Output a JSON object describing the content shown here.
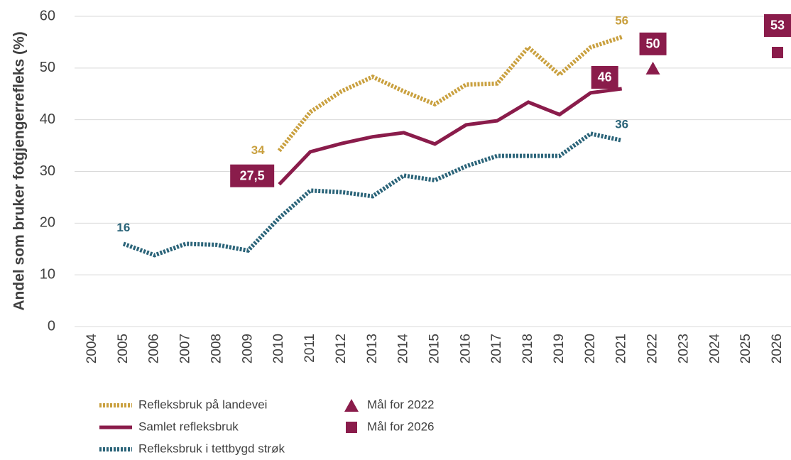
{
  "chart_data": {
    "type": "line",
    "y_label": "Andel som bruker fotgjengerrefleks (%)",
    "categories": [
      "2004",
      "2005",
      "2006",
      "2007",
      "2008",
      "2009",
      "2010",
      "2011",
      "2012",
      "2013",
      "2014",
      "2015",
      "2016",
      "2017",
      "2018",
      "2019",
      "2020",
      "2021",
      "2022",
      "2023",
      "2024",
      "2025",
      "2026"
    ],
    "ylim": [
      0,
      60
    ],
    "yticks": [
      0,
      10,
      20,
      30,
      40,
      50,
      60
    ],
    "grid": true,
    "series": [
      {
        "name": "Refleksbruk på landevei",
        "color": "#c9a03f",
        "style": "dotted",
        "boxed_labels": false,
        "values": [
          null,
          null,
          null,
          null,
          null,
          null,
          34,
          41.5,
          45.5,
          48.3,
          45.5,
          43,
          46.8,
          47,
          54,
          48.7,
          54,
          56,
          null,
          null,
          null,
          null,
          null
        ],
        "value_labels": [
          null,
          null,
          null,
          null,
          null,
          null,
          "34",
          null,
          null,
          null,
          null,
          null,
          null,
          null,
          null,
          null,
          null,
          "56",
          null,
          null,
          null,
          null,
          null
        ]
      },
      {
        "name": "Samlet refleksbruk",
        "color": "#8a1c4b",
        "style": "solid",
        "boxed_labels": true,
        "values": [
          null,
          null,
          null,
          null,
          null,
          null,
          27.5,
          33.8,
          35.4,
          36.7,
          37.5,
          35.3,
          39,
          39.8,
          43.4,
          41,
          45.2,
          46,
          null,
          null,
          null,
          null,
          null
        ],
        "value_labels": [
          null,
          null,
          null,
          null,
          null,
          null,
          "27,5",
          null,
          null,
          null,
          null,
          null,
          null,
          null,
          null,
          null,
          null,
          "46",
          null,
          null,
          null,
          null,
          null
        ]
      },
      {
        "name": "Refleksbruk i tettbygd strøk",
        "color": "#2b6479",
        "style": "dotted",
        "boxed_labels": false,
        "values": [
          null,
          16,
          13.8,
          16,
          15.8,
          14.7,
          21,
          26.3,
          26,
          25.2,
          29.2,
          28.3,
          31,
          33,
          33,
          33,
          37.3,
          36,
          null,
          null,
          null,
          null,
          null
        ],
        "value_labels": [
          null,
          "16",
          null,
          null,
          null,
          null,
          null,
          null,
          null,
          null,
          null,
          null,
          null,
          null,
          null,
          null,
          null,
          "36",
          null,
          null,
          null,
          null,
          null
        ]
      },
      {
        "name": "Mål for 2022",
        "color": "#8a1c4b",
        "style": "marker",
        "marker": "triangle",
        "boxed_labels": true,
        "values": [
          null,
          null,
          null,
          null,
          null,
          null,
          null,
          null,
          null,
          null,
          null,
          null,
          null,
          null,
          null,
          null,
          null,
          null,
          50,
          null,
          null,
          null,
          null
        ],
        "value_labels": [
          null,
          null,
          null,
          null,
          null,
          null,
          null,
          null,
          null,
          null,
          null,
          null,
          null,
          null,
          null,
          null,
          null,
          null,
          "50",
          null,
          null,
          null,
          null
        ]
      },
      {
        "name": "Mål for 2026",
        "color": "#8a1c4b",
        "style": "marker",
        "marker": "square",
        "boxed_labels": true,
        "values": [
          null,
          null,
          null,
          null,
          null,
          null,
          null,
          null,
          null,
          null,
          null,
          null,
          null,
          null,
          null,
          null,
          null,
          null,
          null,
          null,
          null,
          null,
          53
        ],
        "value_labels": [
          null,
          null,
          null,
          null,
          null,
          null,
          null,
          null,
          null,
          null,
          null,
          null,
          null,
          null,
          null,
          null,
          null,
          null,
          null,
          null,
          null,
          null,
          "53"
        ]
      }
    ]
  }
}
